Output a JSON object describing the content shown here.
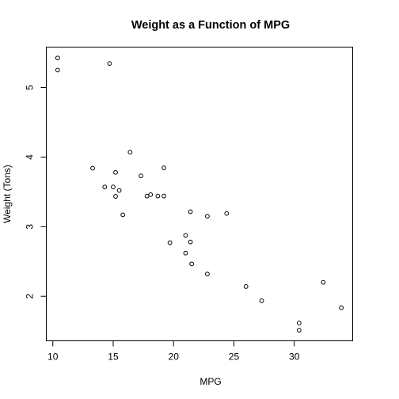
{
  "chart_data": {
    "type": "scatter",
    "title": "Weight as a Function of MPG",
    "xlabel": "MPG",
    "ylabel": "Weight (Tons)",
    "xlim": [
      9.46,
      34.84
    ],
    "ylim": [
      1.36,
      5.58
    ],
    "xticks": [
      10,
      15,
      20,
      25,
      30
    ],
    "yticks": [
      2,
      3,
      4,
      5
    ],
    "xtick_labels": [
      "10",
      "15",
      "20",
      "25",
      "30"
    ],
    "ytick_labels": [
      "2",
      "3",
      "4",
      "5"
    ],
    "grid": false,
    "legend": false,
    "points": [
      {
        "x": 21.0,
        "y": 2.62
      },
      {
        "x": 21.0,
        "y": 2.875
      },
      {
        "x": 22.8,
        "y": 2.32
      },
      {
        "x": 21.4,
        "y": 3.215
      },
      {
        "x": 18.7,
        "y": 3.44
      },
      {
        "x": 18.1,
        "y": 3.46
      },
      {
        "x": 14.3,
        "y": 3.57
      },
      {
        "x": 24.4,
        "y": 3.19
      },
      {
        "x": 22.8,
        "y": 3.15
      },
      {
        "x": 19.2,
        "y": 3.44
      },
      {
        "x": 17.8,
        "y": 3.44
      },
      {
        "x": 16.4,
        "y": 4.07
      },
      {
        "x": 17.3,
        "y": 3.73
      },
      {
        "x": 15.2,
        "y": 3.78
      },
      {
        "x": 10.4,
        "y": 5.25
      },
      {
        "x": 10.4,
        "y": 5.424
      },
      {
        "x": 14.7,
        "y": 5.345
      },
      {
        "x": 32.4,
        "y": 2.2
      },
      {
        "x": 30.4,
        "y": 1.615
      },
      {
        "x": 33.9,
        "y": 1.835
      },
      {
        "x": 21.5,
        "y": 2.465
      },
      {
        "x": 15.5,
        "y": 3.52
      },
      {
        "x": 15.2,
        "y": 3.435
      },
      {
        "x": 13.3,
        "y": 3.84
      },
      {
        "x": 19.2,
        "y": 3.845
      },
      {
        "x": 27.3,
        "y": 1.935
      },
      {
        "x": 26.0,
        "y": 2.14
      },
      {
        "x": 30.4,
        "y": 1.513
      },
      {
        "x": 15.8,
        "y": 3.17
      },
      {
        "x": 19.7,
        "y": 2.77
      },
      {
        "x": 15.0,
        "y": 3.57
      },
      {
        "x": 21.4,
        "y": 2.78
      }
    ]
  }
}
